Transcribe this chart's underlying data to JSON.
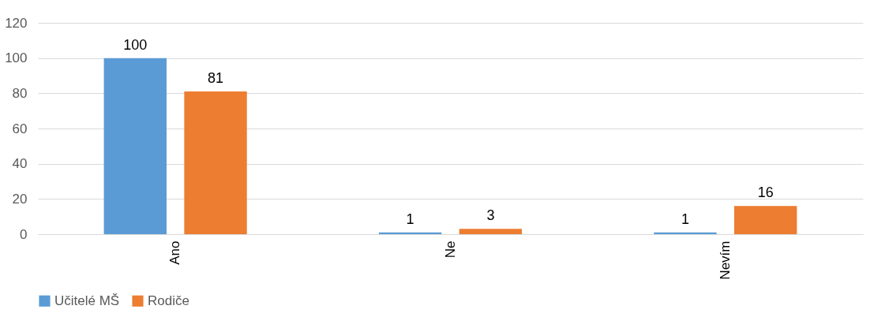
{
  "chart_data": {
    "type": "bar",
    "categories": [
      "Ano",
      "Ne",
      "Nevím"
    ],
    "series": [
      {
        "name": "Učitelé MŠ",
        "color": "#5b9bd5",
        "values": [
          100,
          1,
          1
        ]
      },
      {
        "name": "Rodiče",
        "color": "#ed7d31",
        "values": [
          81,
          3,
          16
        ]
      }
    ],
    "ylim": [
      0,
      120
    ],
    "yticks": [
      0,
      20,
      40,
      60,
      80,
      100,
      120
    ],
    "grid": "y",
    "legend": "bottom",
    "data_labels": true
  }
}
